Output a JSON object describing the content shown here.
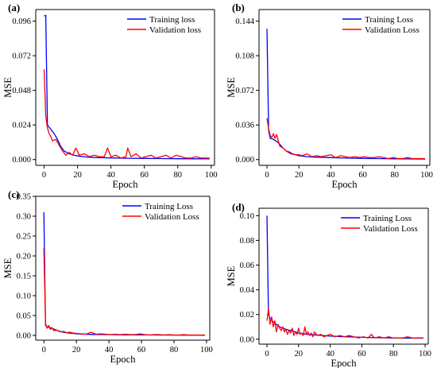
{
  "chart_data": [
    {
      "type": "line",
      "panel_label": "(a)",
      "xlabel": "Epoch",
      "ylabel": "MSE",
      "xlim": [
        -5,
        102
      ],
      "ylim": [
        -0.004,
        0.104
      ],
      "xticks": [
        0,
        20,
        40,
        60,
        80,
        100
      ],
      "yticks": [
        0.0,
        0.024,
        0.048,
        0.072,
        0.096
      ],
      "ytick_labels": [
        "0.000",
        "0.024",
        "0.048",
        "0.072",
        "0.096"
      ],
      "legend_position": "top-right",
      "series": [
        {
          "name": "Training loss",
          "color": "#0000ff",
          "x": [
            0,
            1,
            2,
            4,
            6,
            8,
            10,
            12,
            15,
            18,
            20,
            25,
            30,
            40,
            50,
            60,
            70,
            80,
            90,
            99
          ],
          "values": [
            0.0995,
            0.1,
            0.024,
            0.021,
            0.018,
            0.014,
            0.009,
            0.006,
            0.004,
            0.003,
            0.0025,
            0.0018,
            0.0014,
            0.0011,
            0.0009,
            0.0008,
            0.0007,
            0.0006,
            0.0005,
            0.0005
          ]
        },
        {
          "name": "Validation loss",
          "color": "#ff0000",
          "x": [
            0,
            1,
            2,
            3,
            4,
            5,
            7,
            9,
            11,
            13,
            15,
            17,
            19,
            21,
            24,
            27,
            30,
            33,
            36,
            38,
            40,
            43,
            46,
            49,
            50,
            52,
            55,
            58,
            61,
            64,
            67,
            70,
            73,
            76,
            79,
            82,
            85,
            88,
            91,
            94,
            97,
            99
          ],
          "values": [
            0.0625,
            0.03,
            0.022,
            0.018,
            0.016,
            0.013,
            0.014,
            0.01,
            0.006,
            0.003,
            0.005,
            0.003,
            0.008,
            0.003,
            0.004,
            0.002,
            0.003,
            0.002,
            0.002,
            0.008,
            0.002,
            0.003,
            0.001,
            0.002,
            0.008,
            0.002,
            0.004,
            0.001,
            0.002,
            0.003,
            0.001,
            0.002,
            0.003,
            0.001,
            0.003,
            0.002,
            0.001,
            0.001,
            0.002,
            0.001,
            0.001,
            0.001
          ]
        }
      ]
    },
    {
      "type": "line",
      "panel_label": "(b)",
      "xlabel": "Epoch",
      "ylabel": "MSE",
      "xlim": [
        -5,
        102
      ],
      "ylim": [
        -0.006,
        0.156
      ],
      "xticks": [
        0,
        20,
        40,
        60,
        80,
        100
      ],
      "yticks": [
        0.0,
        0.036,
        0.072,
        0.108,
        0.144
      ],
      "ytick_labels": [
        "0.000",
        "0.036",
        "0.072",
        "0.108",
        "0.144"
      ],
      "legend_position": "top-right",
      "series": [
        {
          "name": "Training Loss",
          "color": "#0000ff",
          "x": [
            0,
            1,
            2,
            4,
            6,
            8,
            10,
            12,
            15,
            18,
            20,
            25,
            30,
            40,
            50,
            60,
            70,
            80,
            90,
            99
          ],
          "values": [
            0.136,
            0.03,
            0.022,
            0.021,
            0.019,
            0.016,
            0.012,
            0.009,
            0.006,
            0.005,
            0.004,
            0.003,
            0.0025,
            0.002,
            0.0015,
            0.0012,
            0.001,
            0.0008,
            0.0006,
            0.0005
          ]
        },
        {
          "name": "Validation Loss",
          "color": "#ff0000",
          "x": [
            0,
            1,
            2,
            3,
            4,
            5,
            6,
            8,
            10,
            12,
            14,
            16,
            18,
            20,
            22,
            25,
            28,
            31,
            34,
            37,
            40,
            43,
            46,
            49,
            52,
            55,
            58,
            61,
            64,
            67,
            70,
            73,
            76,
            79,
            82,
            85,
            88,
            91,
            94,
            97,
            99
          ],
          "values": [
            0.043,
            0.032,
            0.025,
            0.023,
            0.027,
            0.022,
            0.026,
            0.014,
            0.012,
            0.009,
            0.008,
            0.006,
            0.005,
            0.005,
            0.004,
            0.006,
            0.003,
            0.004,
            0.003,
            0.004,
            0.005,
            0.002,
            0.004,
            0.003,
            0.002,
            0.003,
            0.002,
            0.003,
            0.002,
            0.002,
            0.003,
            0.002,
            0.001,
            0.002,
            0.001,
            0.001,
            0.002,
            0.001,
            0.001,
            0.001,
            0.001
          ]
        }
      ]
    },
    {
      "type": "line",
      "panel_label": "(c)",
      "xlabel": "Epoch",
      "ylabel": "MSE",
      "xlim": [
        -5,
        102
      ],
      "ylim": [
        -0.012,
        0.35
      ],
      "xticks": [
        0,
        20,
        40,
        60,
        80,
        100
      ],
      "yticks": [
        0.0,
        0.05,
        0.1,
        0.15,
        0.2,
        0.25,
        0.3,
        0.35
      ],
      "ytick_labels": [
        "0.00",
        "0.05",
        "0.10",
        "0.15",
        "0.20",
        "0.25",
        "0.30",
        "0.35"
      ],
      "legend_position": "top-right",
      "series": [
        {
          "name": "Training Loss",
          "color": "#0000ff",
          "x": [
            0,
            1,
            2,
            4,
            6,
            8,
            10,
            12,
            15,
            18,
            20,
            25,
            30,
            40,
            50,
            60,
            70,
            80,
            90,
            99
          ],
          "values": [
            0.31,
            0.025,
            0.022,
            0.019,
            0.016,
            0.013,
            0.01,
            0.008,
            0.006,
            0.005,
            0.004,
            0.003,
            0.0025,
            0.002,
            0.0015,
            0.0012,
            0.001,
            0.0008,
            0.0006,
            0.0005
          ]
        },
        {
          "name": "Validation Loss",
          "color": "#ff0000",
          "x": [
            0,
            1,
            2,
            3,
            4,
            5,
            6,
            8,
            10,
            12,
            14,
            16,
            18,
            20,
            23,
            26,
            29,
            32,
            35,
            38,
            41,
            44,
            47,
            50,
            53,
            56,
            59,
            62,
            65,
            68,
            71,
            74,
            77,
            80,
            83,
            86,
            89,
            92,
            95,
            99
          ],
          "values": [
            0.22,
            0.03,
            0.018,
            0.025,
            0.015,
            0.02,
            0.012,
            0.013,
            0.009,
            0.01,
            0.007,
            0.008,
            0.006,
            0.005,
            0.004,
            0.003,
            0.008,
            0.003,
            0.004,
            0.003,
            0.002,
            0.003,
            0.002,
            0.003,
            0.002,
            0.002,
            0.004,
            0.002,
            0.001,
            0.002,
            0.002,
            0.001,
            0.002,
            0.001,
            0.001,
            0.002,
            0.001,
            0.001,
            0.001,
            0.001
          ]
        }
      ]
    },
    {
      "type": "line",
      "panel_label": "(d)",
      "xlabel": "Epoch",
      "ylabel": "MSE",
      "xlim": [
        -5,
        102
      ],
      "ylim": [
        -0.004,
        0.106
      ],
      "xticks": [
        0,
        20,
        40,
        60,
        80,
        100
      ],
      "yticks": [
        0.0,
        0.02,
        0.04,
        0.06,
        0.08,
        0.1
      ],
      "ytick_labels": [
        "0.00",
        "0.02",
        "0.04",
        "0.06",
        "0.08",
        "0.10"
      ],
      "legend_position": "top-right",
      "series": [
        {
          "name": "Training Loss",
          "color": "#0000ff",
          "x": [
            0,
            1,
            2,
            4,
            6,
            8,
            10,
            12,
            15,
            18,
            20,
            25,
            30,
            40,
            50,
            60,
            70,
            80,
            90,
            99
          ],
          "values": [
            0.1,
            0.02,
            0.017,
            0.014,
            0.012,
            0.01,
            0.009,
            0.008,
            0.007,
            0.006,
            0.005,
            0.004,
            0.0035,
            0.0025,
            0.002,
            0.0015,
            0.0012,
            0.001,
            0.0009,
            0.0008
          ]
        },
        {
          "name": "Validation Loss",
          "color": "#ff0000",
          "x": [
            0,
            1,
            2,
            3,
            4,
            5,
            6,
            7,
            8,
            9,
            10,
            11,
            12,
            13,
            14,
            15,
            16,
            17,
            18,
            19,
            20,
            21,
            22,
            23,
            24,
            25,
            26,
            27,
            28,
            29,
            30,
            32,
            34,
            36,
            38,
            40,
            43,
            46,
            49,
            52,
            55,
            58,
            61,
            64,
            66,
            68,
            71,
            74,
            77,
            80,
            83,
            86,
            89,
            92,
            95,
            99
          ],
          "values": [
            0.015,
            0.025,
            0.012,
            0.018,
            0.01,
            0.015,
            0.006,
            0.012,
            0.009,
            0.007,
            0.01,
            0.006,
            0.008,
            0.004,
            0.007,
            0.005,
            0.009,
            0.003,
            0.006,
            0.004,
            0.009,
            0.004,
            0.005,
            0.003,
            0.01,
            0.004,
            0.006,
            0.003,
            0.005,
            0.002,
            0.006,
            0.003,
            0.004,
            0.002,
            0.003,
            0.004,
            0.002,
            0.003,
            0.002,
            0.003,
            0.002,
            0.001,
            0.002,
            0.001,
            0.004,
            0.001,
            0.002,
            0.001,
            0.002,
            0.001,
            0.001,
            0.001,
            0.002,
            0.001,
            0.001,
            0.001
          ]
        }
      ]
    }
  ]
}
